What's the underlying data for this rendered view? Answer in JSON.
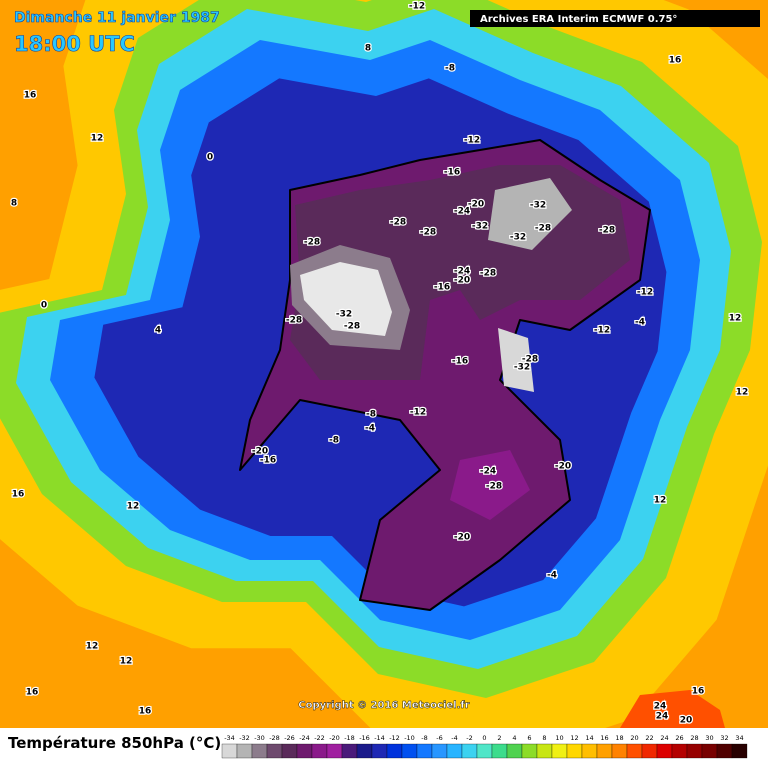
{
  "header": {
    "date": "Dimanche 11 janvier 1987",
    "time": "18:00 UTC",
    "source": "Archives ERA Interim ECMWF 0.75°"
  },
  "map": {
    "contour_labels": [
      -12,
      8,
      16,
      -8,
      12,
      16,
      -12,
      -16,
      -24,
      -20,
      -32,
      -28,
      -28,
      -32,
      -32,
      -28,
      -28,
      -28,
      -24,
      -20,
      -28,
      -16,
      -32,
      -28,
      -28,
      -12,
      -16,
      -28,
      -32,
      -12,
      -4,
      -8,
      -12,
      -4,
      -8,
      -20,
      -16,
      -24,
      -28,
      -20,
      -20,
      -4,
      12,
      12,
      12,
      16,
      16,
      16,
      24,
      24,
      20,
      12,
      12,
      16,
      12,
      0,
      4,
      8,
      0
    ]
  },
  "footer": {
    "copyright": "Copyright © 2016 Meteociel.fr",
    "legend_title": "Température 850hPa (°C)",
    "levels": [
      -34,
      -32,
      -30,
      -28,
      -26,
      -24,
      -22,
      -20,
      -18,
      -16,
      -14,
      -12,
      -10,
      -8,
      -6,
      -4,
      -2,
      0,
      2,
      4,
      6,
      8,
      10,
      12,
      14,
      16,
      18,
      20,
      22,
      24,
      26,
      28,
      30,
      32,
      34
    ],
    "colors": [
      "#d8d8d8",
      "#b4b4b4",
      "#8c7c8c",
      "#6e4a6e",
      "#5a2a5a",
      "#6e1a6e",
      "#8a1a8a",
      "#a020a0",
      "#4a1a7a",
      "#1a1a8a",
      "#1e28b4",
      "#0032dc",
      "#0050f0",
      "#1478ff",
      "#2896ff",
      "#28b4ff",
      "#3cd2f0",
      "#50e6c8",
      "#3cdc8c",
      "#50d250",
      "#8cdc28",
      "#c8e614",
      "#f0f014",
      "#ffd700",
      "#ffbe00",
      "#ffa000",
      "#ff8200",
      "#ff5000",
      "#f02800",
      "#dc0000",
      "#b40000",
      "#960000",
      "#780000",
      "#500000",
      "#280000"
    ]
  }
}
